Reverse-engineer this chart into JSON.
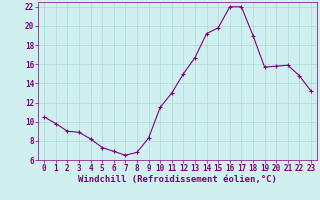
{
  "x": [
    0,
    1,
    2,
    3,
    4,
    5,
    6,
    7,
    8,
    9,
    10,
    11,
    12,
    13,
    14,
    15,
    16,
    17,
    18,
    19,
    20,
    21,
    22,
    23
  ],
  "y": [
    10.5,
    9.8,
    9.0,
    8.9,
    8.2,
    7.3,
    6.9,
    6.5,
    6.8,
    8.3,
    11.5,
    13.0,
    15.0,
    16.7,
    19.2,
    19.8,
    22.0,
    22.0,
    19.0,
    15.7,
    15.8,
    15.9,
    14.8,
    13.2
  ],
  "line_color": "#800080",
  "marker": "+",
  "marker_size": 3,
  "bg_color": "#d0f0f0",
  "grid_color": "#b0dada",
  "xlabel": "Windchill (Refroidissement éolien,°C)",
  "ylabel": "",
  "ylim": [
    6,
    22.5
  ],
  "xlim": [
    -0.5,
    23.5
  ],
  "yticks": [
    6,
    8,
    10,
    12,
    14,
    16,
    18,
    20,
    22
  ],
  "xticks": [
    0,
    1,
    2,
    3,
    4,
    5,
    6,
    7,
    8,
    9,
    10,
    11,
    12,
    13,
    14,
    15,
    16,
    17,
    18,
    19,
    20,
    21,
    22,
    23
  ],
  "tick_label_size": 5.5,
  "xlabel_size": 6.5,
  "line_width": 0.8,
  "marker_edge_width": 0.8
}
